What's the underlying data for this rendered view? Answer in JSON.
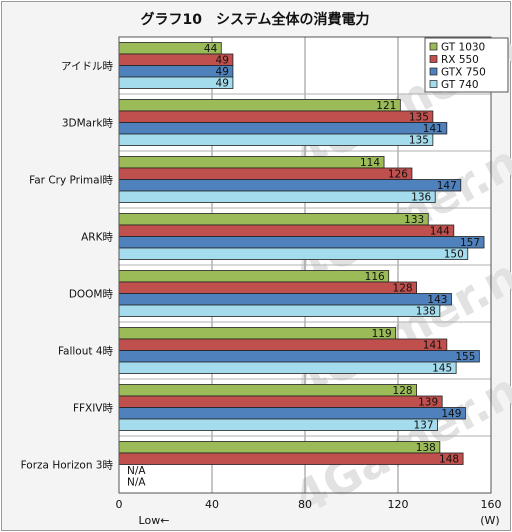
{
  "chart_data": {
    "type": "bar",
    "orientation": "horizontal",
    "title": "グラフ10　システム全体の消費電力",
    "categories": [
      "アイドル時",
      "3DMark時",
      "Far Cry Primal時",
      "ARK時",
      "DOOM時",
      "Fallout 4時",
      "FFXIV時",
      "Forza Horizon 3時"
    ],
    "series": [
      {
        "name": "GT 1030",
        "color": "#9bbb59",
        "values": [
          44,
          121,
          114,
          133,
          116,
          119,
          128,
          138
        ]
      },
      {
        "name": "RX 550",
        "color": "#c0504d",
        "values": [
          49,
          135,
          126,
          144,
          128,
          141,
          139,
          148
        ]
      },
      {
        "name": "GTX 750",
        "color": "#4f81bd",
        "values": [
          49,
          141,
          147,
          157,
          143,
          155,
          149,
          null
        ]
      },
      {
        "name": "GT 740",
        "color": "#a5dced",
        "values": [
          49,
          135,
          136,
          150,
          138,
          145,
          137,
          null
        ]
      }
    ],
    "na_label": "N/A",
    "xlim": [
      0,
      160
    ],
    "xticks": [
      0,
      40,
      80,
      120,
      160
    ],
    "xlabel_left": "Low←",
    "xlabel_right": "(W)",
    "grid": true,
    "legend_position": "top-right",
    "watermark": "4Gamer.net"
  }
}
